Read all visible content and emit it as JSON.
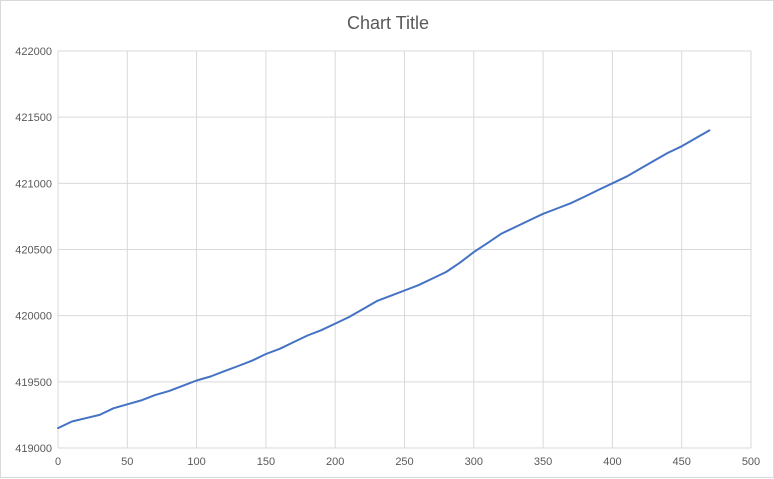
{
  "chart_data": {
    "type": "line",
    "title": "Chart Title",
    "xlabel": "",
    "ylabel": "",
    "xlim": [
      0,
      500
    ],
    "ylim": [
      419000,
      422000
    ],
    "x_ticks": [
      0,
      50,
      100,
      150,
      200,
      250,
      300,
      350,
      400,
      450,
      500
    ],
    "y_ticks": [
      419000,
      419500,
      420000,
      420500,
      421000,
      421500,
      422000
    ],
    "grid": true,
    "legend": "none",
    "series_color": "#4472C4",
    "series": [
      {
        "x": [
          0,
          10,
          20,
          30,
          40,
          50,
          60,
          70,
          80,
          90,
          100,
          110,
          120,
          130,
          140,
          150,
          160,
          170,
          180,
          190,
          200,
          210,
          220,
          230,
          240,
          250,
          260,
          270,
          280,
          290,
          300,
          310,
          320,
          330,
          340,
          350,
          360,
          370,
          380,
          390,
          400,
          410,
          420,
          430,
          440,
          450,
          460,
          470
        ],
        "values": [
          419150,
          419200,
          419225,
          419250,
          419300,
          419330,
          419360,
          419400,
          419430,
          419470,
          419510,
          419540,
          419580,
          419620,
          419660,
          419710,
          419750,
          419800,
          419850,
          419890,
          419940,
          419990,
          420050,
          420110,
          420150,
          420190,
          420230,
          420280,
          420330,
          420400,
          420480,
          420550,
          420620,
          420670,
          420720,
          420770,
          420810,
          420850,
          420900,
          420950,
          421000,
          421050,
          421110,
          421170,
          421230,
          421280,
          421340,
          421400
        ]
      }
    ]
  }
}
